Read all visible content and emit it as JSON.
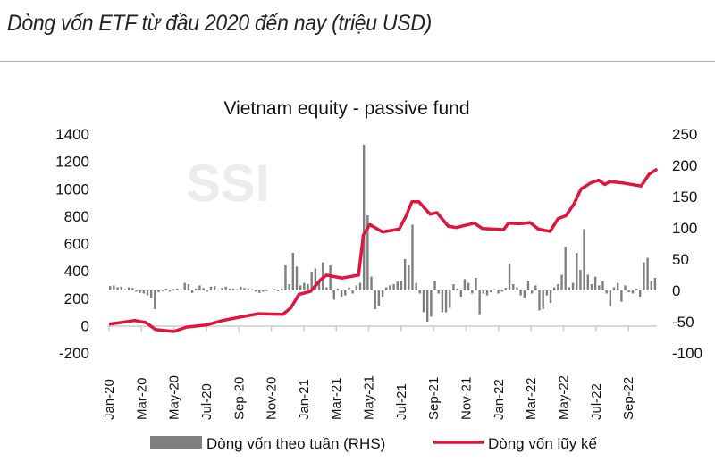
{
  "header": {
    "title": "Dòng vốn ETF từ đầu 2020 đến nay (triệu USD)"
  },
  "watermark": "SSI",
  "chart_data": {
    "type": "bar+line",
    "title": "Vietnam equity - passive fund",
    "left_axis": {
      "ylim": [
        -200,
        1400
      ],
      "ticks": [
        "1400",
        "1200",
        "1000",
        "800",
        "600",
        "400",
        "200",
        "0",
        "-200"
      ]
    },
    "right_axis": {
      "ylim": [
        -100,
        250
      ],
      "ticks": [
        "250",
        "200",
        "150",
        "100",
        "50",
        "0",
        "-50",
        "-100"
      ]
    },
    "x_ticks": [
      "Jan-20",
      "Mar-20",
      "May-20",
      "Jul-20",
      "Sep-20",
      "Nov-20",
      "Jan-21",
      "Mar-21",
      "May-21",
      "Jul-21",
      "Sep-21",
      "Nov-21",
      "Jan-22",
      "Mar-22",
      "May-22",
      "Jul-22",
      "Sep-22"
    ],
    "grid": false,
    "legend": {
      "position": "bottom",
      "entries": [
        "Dòng vốn theo tuần (RHS)",
        "Dòng vốn lũy kế"
      ]
    },
    "colors": {
      "bars": "#7f7f7f",
      "line": "#e0143c"
    },
    "series": [
      {
        "name": "Dòng vốn theo tuần (RHS)",
        "type": "bar",
        "axis": "right",
        "frequency": "weekly",
        "values": [
          7,
          8,
          5,
          6,
          2,
          5,
          4,
          -2,
          -4,
          -5,
          -8,
          -12,
          -30,
          -3,
          -1,
          3,
          -2,
          2,
          3,
          2,
          12,
          10,
          -4,
          3,
          8,
          4,
          -2,
          6,
          7,
          1,
          4,
          6,
          3,
          3,
          2,
          6,
          4,
          3,
          2,
          -2,
          -4,
          -2,
          -1,
          1,
          2,
          -1,
          3,
          40,
          10,
          60,
          38,
          8,
          12,
          10,
          30,
          35,
          15,
          45,
          5,
          40,
          -15,
          3,
          -10,
          -8,
          5,
          -5,
          8,
          12,
          233,
          120,
          22,
          -30,
          -25,
          -10,
          5,
          8,
          10,
          14,
          15,
          50,
          40,
          105,
          12,
          -5,
          -35,
          -50,
          -42,
          15,
          -5,
          -35,
          -35,
          -28,
          10,
          3,
          -10,
          18,
          12,
          -5,
          20,
          -38,
          -5,
          -8,
          -3,
          2,
          -5,
          -2,
          4,
          43,
          10,
          5,
          -8,
          -12,
          15,
          -5,
          8,
          -32,
          -30,
          -8,
          -20,
          5,
          10,
          25,
          70,
          5,
          12,
          60,
          33,
          98,
          25,
          10,
          22,
          8,
          15,
          -5,
          -25,
          5,
          12,
          -18,
          8,
          -3,
          -5,
          3,
          -10,
          45,
          52,
          15,
          20
        ]
      },
      {
        "name": "Dòng vốn lũy kế",
        "type": "line",
        "axis": "left",
        "points": [
          [
            "2020-01-01",
            10
          ],
          [
            "2020-02-18",
            37
          ],
          [
            "2020-03-10",
            22
          ],
          [
            "2020-03-28",
            -28
          ],
          [
            "2020-05-01",
            -43
          ],
          [
            "2020-05-25",
            -11
          ],
          [
            "2020-07-01",
            4
          ],
          [
            "2020-08-01",
            37
          ],
          [
            "2020-09-07",
            65
          ],
          [
            "2020-10-07",
            87
          ],
          [
            "2020-11-22",
            82
          ],
          [
            "2020-12-07",
            130
          ],
          [
            "2020-12-22",
            228
          ],
          [
            "2021-01-13",
            250
          ],
          [
            "2021-02-01",
            336
          ],
          [
            "2021-02-12",
            369
          ],
          [
            "2021-03-13",
            347
          ],
          [
            "2021-04-13",
            369
          ],
          [
            "2021-04-22",
            662
          ],
          [
            "2021-05-04",
            738
          ],
          [
            "2021-05-28",
            684
          ],
          [
            "2021-06-28",
            705
          ],
          [
            "2021-07-10",
            792
          ],
          [
            "2021-07-22",
            905
          ],
          [
            "2021-08-04",
            905
          ],
          [
            "2021-08-25",
            814
          ],
          [
            "2021-09-07",
            825
          ],
          [
            "2021-09-28",
            727
          ],
          [
            "2021-10-13",
            716
          ],
          [
            "2021-11-16",
            749
          ],
          [
            "2021-12-01",
            710
          ],
          [
            "2022-01-10",
            701
          ],
          [
            "2022-01-19",
            749
          ],
          [
            "2022-02-09",
            744
          ],
          [
            "2022-03-01",
            753
          ],
          [
            "2022-03-16",
            705
          ],
          [
            "2022-04-07",
            688
          ],
          [
            "2022-04-22",
            781
          ],
          [
            "2022-05-07",
            803
          ],
          [
            "2022-05-22",
            890
          ],
          [
            "2022-06-04",
            998
          ],
          [
            "2022-06-22",
            1042
          ],
          [
            "2022-07-07",
            1063
          ],
          [
            "2022-07-19",
            1031
          ],
          [
            "2022-07-28",
            1052
          ],
          [
            "2022-08-22",
            1042
          ],
          [
            "2022-09-25",
            1020
          ],
          [
            "2022-10-10",
            1107
          ],
          [
            "2022-10-25",
            1144
          ]
        ]
      }
    ]
  }
}
